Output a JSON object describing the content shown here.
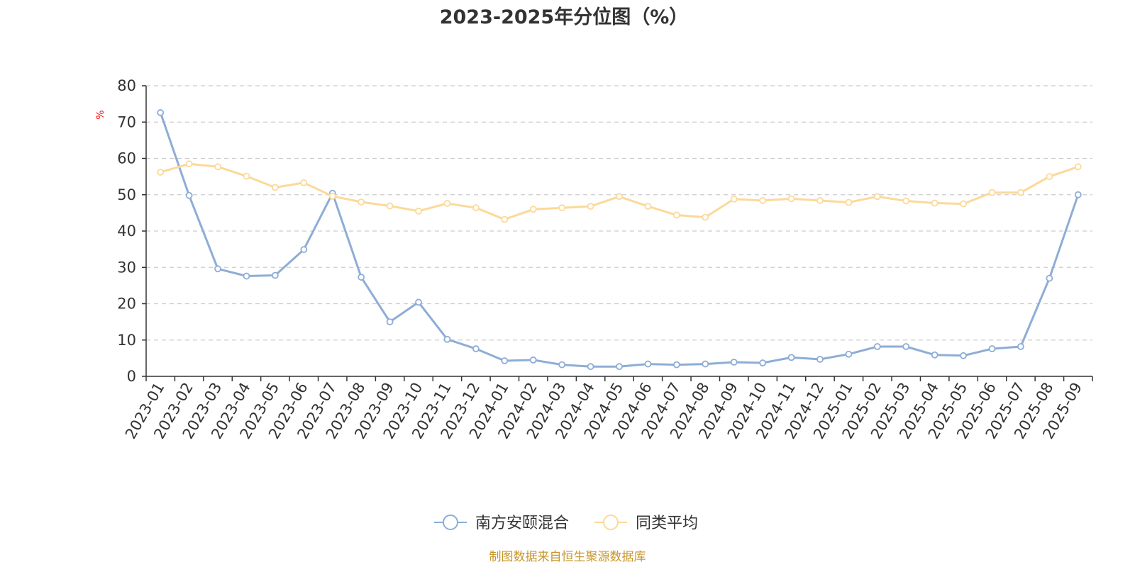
{
  "chart_data": {
    "type": "line",
    "title": "2023-2025年分位图（%）",
    "ylabel": "%",
    "ylim": [
      0,
      80
    ],
    "yticks": [
      "0",
      "10",
      "20",
      "30",
      "40",
      "50",
      "60",
      "70",
      "80"
    ],
    "grid": true,
    "legend_position": "bottom-center",
    "categories": [
      "2023-01",
      "2023-02",
      "2023-03",
      "2023-04",
      "2023-05",
      "2023-06",
      "2023-07",
      "2023-08",
      "2023-09",
      "2023-10",
      "2023-11",
      "2023-12",
      "2024-01",
      "2024-02",
      "2024-03",
      "2024-04",
      "2024-05",
      "2024-06",
      "2024-07",
      "2024-08",
      "2024-09",
      "2024-10",
      "2024-11",
      "2024-12",
      "2025-01",
      "2025-02",
      "2025-03",
      "2025-04",
      "2025-05",
      "2025-06",
      "2025-07",
      "2025-08",
      "2025-09"
    ],
    "series": [
      {
        "name": "南方安颐混合",
        "color": "#8eadd6",
        "values": [
          72.6,
          49.8,
          29.6,
          27.6,
          27.8,
          34.9,
          50.4,
          27.3,
          15.0,
          20.4,
          10.2,
          7.6,
          4.3,
          4.5,
          3.2,
          2.7,
          2.7,
          3.4,
          3.2,
          3.4,
          3.9,
          3.7,
          5.2,
          4.7,
          6.1,
          8.2,
          8.2,
          5.9,
          5.7,
          7.6,
          8.2,
          27.0,
          50.0
        ]
      },
      {
        "name": "同类平均",
        "color": "#fcd999",
        "values": [
          56.2,
          58.5,
          57.7,
          55.1,
          52.0,
          53.3,
          49.6,
          48.0,
          46.9,
          45.5,
          47.6,
          46.4,
          43.2,
          46.0,
          46.4,
          46.8,
          49.5,
          46.8,
          44.4,
          43.8,
          48.8,
          48.4,
          48.9,
          48.4,
          47.9,
          49.5,
          48.3,
          47.7,
          47.5,
          50.6,
          50.6,
          55.0,
          57.7
        ]
      }
    ]
  },
  "source_note": "制图数据来自恒生聚源数据库",
  "colors": {
    "axis": "#333333",
    "grid": "#cccccc",
    "ylabel": "#ff0000",
    "source": "#c8962a"
  }
}
